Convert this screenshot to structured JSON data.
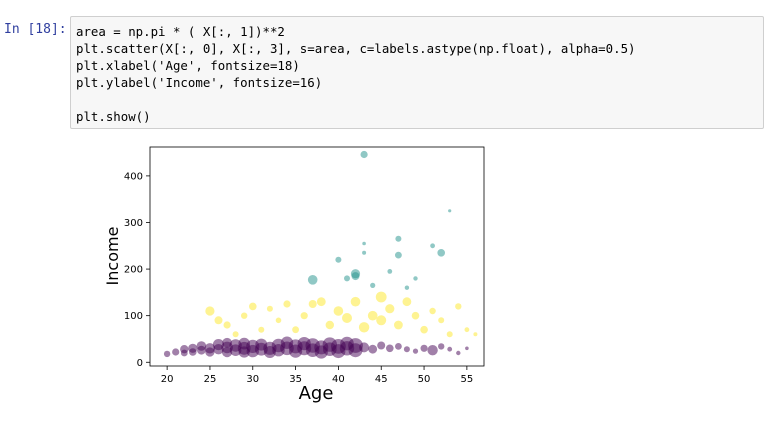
{
  "cell": {
    "prompt": "In [18]:",
    "lines": [
      "area = np.pi * ( X[:, 1])**2",
      "plt.scatter(X[:, 0], X[:, 3], s=area, c=labels.astype(np.float), alpha=0.5)",
      "plt.xlabel('Age', fontsize=18)",
      "plt.ylabel('Income', fontsize=16)",
      "",
      "plt.show()"
    ]
  },
  "chart_data": {
    "type": "scatter",
    "xlabel": "Age",
    "ylabel": "Income",
    "xlim": [
      18,
      57
    ],
    "ylim": [
      -8,
      462
    ],
    "xticks": [
      20,
      25,
      30,
      35,
      40,
      45,
      50,
      55
    ],
    "yticks": [
      0,
      100,
      200,
      300,
      400
    ],
    "colors": {
      "purple": "#440154",
      "teal": "#21918c",
      "yellow": "#fde725"
    },
    "series": [
      {
        "color_key": "purple",
        "points": [
          [
            20,
            18,
            3.2
          ],
          [
            21,
            22,
            3.6
          ],
          [
            22,
            28,
            4.2
          ],
          [
            22,
            20,
            3.4
          ],
          [
            23,
            30,
            4.6
          ],
          [
            23,
            22,
            3.8
          ],
          [
            24,
            26,
            4.4
          ],
          [
            24,
            35,
            4.8
          ],
          [
            25,
            30,
            5.2
          ],
          [
            25,
            22,
            4.6
          ],
          [
            26,
            38,
            5.6
          ],
          [
            26,
            28,
            5.2
          ],
          [
            27,
            32,
            5.8
          ],
          [
            27,
            22,
            5.2
          ],
          [
            27,
            42,
            4.8
          ],
          [
            28,
            36,
            6.2
          ],
          [
            28,
            26,
            5.8
          ],
          [
            29,
            30,
            6.4
          ],
          [
            29,
            40,
            5.8
          ],
          [
            29,
            22,
            5.6
          ],
          [
            30,
            34,
            6.6
          ],
          [
            30,
            24,
            6.2
          ],
          [
            31,
            28,
            6.4
          ],
          [
            31,
            38,
            6.0
          ],
          [
            32,
            30,
            6.6
          ],
          [
            32,
            22,
            6.0
          ],
          [
            33,
            36,
            6.8
          ],
          [
            33,
            26,
            6.2
          ],
          [
            34,
            30,
            6.8
          ],
          [
            34,
            42,
            6.2
          ],
          [
            35,
            34,
            7.0
          ],
          [
            35,
            24,
            6.6
          ],
          [
            36,
            30,
            7.0
          ],
          [
            36,
            40,
            6.6
          ],
          [
            37,
            36,
            7.2
          ],
          [
            37,
            26,
            6.8
          ],
          [
            38,
            32,
            7.0
          ],
          [
            38,
            22,
            6.6
          ],
          [
            39,
            38,
            7.2
          ],
          [
            39,
            28,
            6.8
          ],
          [
            40,
            34,
            7.4
          ],
          [
            40,
            24,
            7.0
          ],
          [
            41,
            30,
            7.2
          ],
          [
            41,
            40,
            6.8
          ],
          [
            42,
            36,
            7.4
          ],
          [
            42,
            26,
            7.0
          ],
          [
            43,
            32,
            5.0
          ],
          [
            44,
            28,
            4.4
          ],
          [
            45,
            36,
            4.0
          ],
          [
            46,
            30,
            3.8
          ],
          [
            47,
            34,
            3.4
          ],
          [
            48,
            28,
            3.0
          ],
          [
            49,
            24,
            2.6
          ],
          [
            50,
            30,
            3.6
          ],
          [
            51,
            26,
            5.2
          ],
          [
            52,
            34,
            3.2
          ],
          [
            53,
            28,
            2.4
          ],
          [
            54,
            20,
            2.2
          ],
          [
            55,
            30,
            1.8
          ]
        ]
      },
      {
        "color_key": "yellow",
        "points": [
          [
            25,
            110,
            4.6
          ],
          [
            26,
            90,
            4.0
          ],
          [
            27,
            80,
            3.6
          ],
          [
            28,
            60,
            3.0
          ],
          [
            29,
            100,
            3.2
          ],
          [
            30,
            120,
            3.8
          ],
          [
            31,
            70,
            3.0
          ],
          [
            32,
            115,
            3.0
          ],
          [
            33,
            90,
            2.8
          ],
          [
            34,
            125,
            3.6
          ],
          [
            35,
            70,
            3.4
          ],
          [
            36,
            100,
            3.6
          ],
          [
            37,
            125,
            4.0
          ],
          [
            38,
            130,
            4.4
          ],
          [
            39,
            80,
            4.2
          ],
          [
            40,
            110,
            4.8
          ],
          [
            41,
            95,
            5.0
          ],
          [
            42,
            130,
            4.8
          ],
          [
            43,
            75,
            5.2
          ],
          [
            44,
            100,
            4.8
          ],
          [
            45,
            140,
            5.4
          ],
          [
            45,
            90,
            5.0
          ],
          [
            46,
            115,
            4.6
          ],
          [
            47,
            80,
            4.4
          ],
          [
            48,
            130,
            4.4
          ],
          [
            49,
            100,
            3.8
          ],
          [
            50,
            70,
            3.8
          ],
          [
            51,
            110,
            3.2
          ],
          [
            52,
            90,
            3.0
          ],
          [
            53,
            60,
            3.0
          ],
          [
            54,
            120,
            3.2
          ],
          [
            55,
            70,
            2.4
          ],
          [
            56,
            60,
            2.0
          ]
        ]
      },
      {
        "color_key": "teal",
        "points": [
          [
            43,
            446,
            3.6
          ],
          [
            37,
            177,
            4.8
          ],
          [
            40,
            220,
            3.0
          ],
          [
            41,
            180,
            3.0
          ],
          [
            42,
            190,
            4.6
          ],
          [
            43,
            235,
            2.0
          ],
          [
            43,
            255,
            1.8
          ],
          [
            44,
            165,
            2.6
          ],
          [
            47,
            265,
            3.0
          ],
          [
            47,
            230,
            3.4
          ],
          [
            49,
            180,
            2.2
          ],
          [
            51,
            250,
            2.4
          ],
          [
            52,
            235,
            3.8
          ],
          [
            53,
            325,
            1.6
          ],
          [
            46,
            195,
            2.4
          ],
          [
            48,
            160,
            2.2
          ],
          [
            42,
            185,
            4.0
          ]
        ]
      }
    ]
  }
}
